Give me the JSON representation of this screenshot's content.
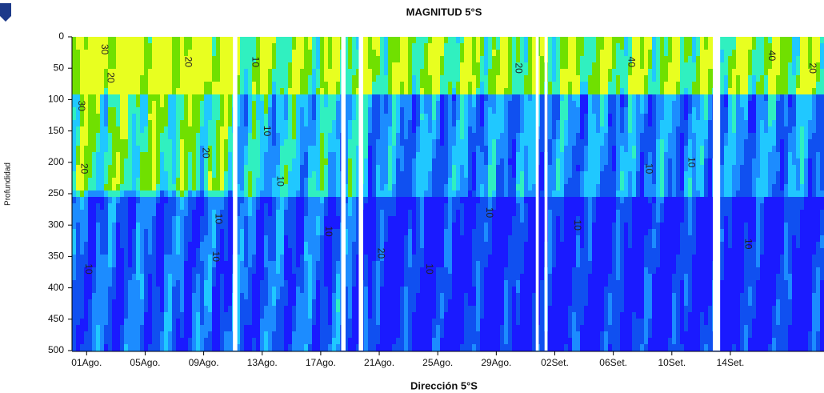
{
  "chart_data": {
    "type": "contour",
    "title": "MAGNITUD 5°S",
    "xlabel": "Dirección 5°S",
    "ylabel": "Profundidad",
    "xlim": [
      -1,
      50.4
    ],
    "ylim": [
      0,
      500
    ],
    "y_inverted": true,
    "xticks": [
      {
        "value": 0,
        "label": "01Ago."
      },
      {
        "value": 4,
        "label": "05Ago."
      },
      {
        "value": 8,
        "label": "09Ago."
      },
      {
        "value": 12,
        "label": "13Ago."
      },
      {
        "value": 16,
        "label": "17Ago."
      },
      {
        "value": 20,
        "label": "21Ago."
      },
      {
        "value": 24,
        "label": "25Ago."
      },
      {
        "value": 28,
        "label": "29Ago."
      },
      {
        "value": 32,
        "label": "02Set."
      },
      {
        "value": 36,
        "label": "06Set."
      },
      {
        "value": 40,
        "label": "10Set."
      },
      {
        "value": 44,
        "label": "14Set."
      }
    ],
    "yticks": [
      0,
      50,
      100,
      150,
      200,
      250,
      300,
      350,
      400,
      450,
      500
    ],
    "colors": [
      "#1a1aff",
      "#1050f0",
      "#1c8cff",
      "#20c8ff",
      "#30f0c0",
      "#70e000",
      "#e8ff20"
    ],
    "gaps": [
      [
        10.0,
        10.3
      ],
      [
        17.4,
        17.7
      ],
      [
        18.6,
        18.9
      ],
      [
        30.7,
        30.9
      ],
      [
        31.3,
        31.5
      ],
      [
        42.8,
        43.3
      ]
    ],
    "contour_labels": [
      {
        "value": 30,
        "x": 1.2,
        "depth": 20
      },
      {
        "value": 20,
        "x": 1.6,
        "depth": 65
      },
      {
        "value": 30,
        "x": -0.4,
        "depth": 110
      },
      {
        "value": 20,
        "x": -0.2,
        "depth": 210
      },
      {
        "value": 10,
        "x": 0.1,
        "depth": 370
      },
      {
        "value": 20,
        "x": 6.9,
        "depth": 40
      },
      {
        "value": 20,
        "x": 8.1,
        "depth": 185
      },
      {
        "value": 10,
        "x": 9.0,
        "depth": 290
      },
      {
        "value": 10,
        "x": 8.8,
        "depth": 350
      },
      {
        "value": 10,
        "x": 11.5,
        "depth": 40
      },
      {
        "value": 10,
        "x": 12.3,
        "depth": 150
      },
      {
        "value": 10,
        "x": 13.2,
        "depth": 230
      },
      {
        "value": 10,
        "x": 16.5,
        "depth": 310
      },
      {
        "value": 20,
        "x": 20.1,
        "depth": 345
      },
      {
        "value": 10,
        "x": 23.4,
        "depth": 370
      },
      {
        "value": 10,
        "x": 27.5,
        "depth": 280
      },
      {
        "value": 20,
        "x": 29.5,
        "depth": 50
      },
      {
        "value": 10,
        "x": 33.5,
        "depth": 300
      },
      {
        "value": 40,
        "x": 37.2,
        "depth": 40
      },
      {
        "value": 10,
        "x": 38.4,
        "depth": 210
      },
      {
        "value": 10,
        "x": 41.3,
        "depth": 200
      },
      {
        "value": 10,
        "x": 45.2,
        "depth": 330
      },
      {
        "value": 40,
        "x": 46.8,
        "depth": 30
      },
      {
        "value": 20,
        "x": 49.6,
        "depth": 50
      }
    ]
  }
}
